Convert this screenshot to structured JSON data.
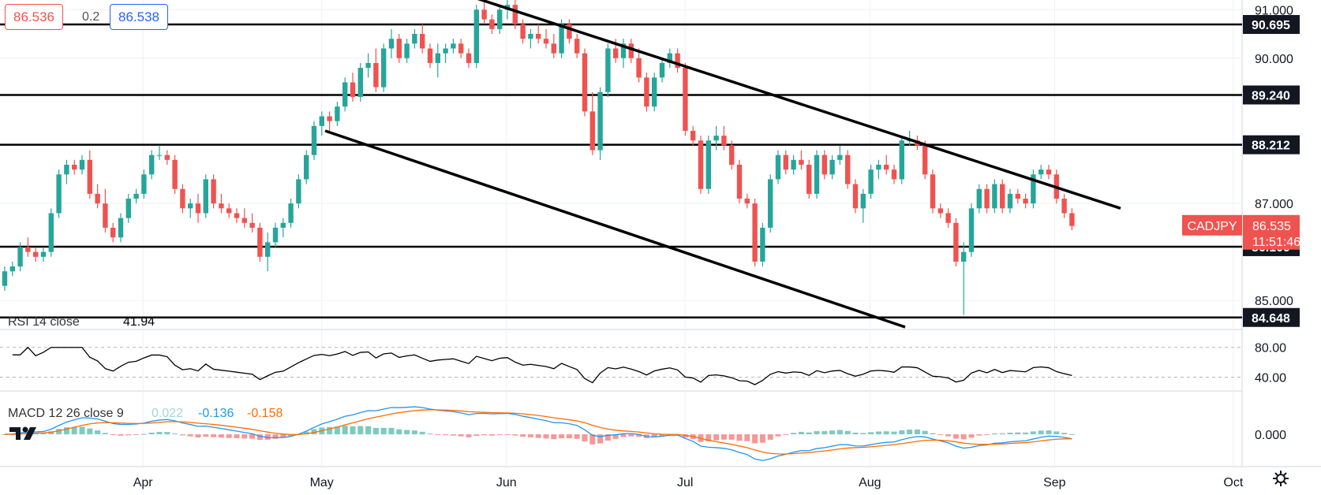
{
  "quote": {
    "sell": "86.536",
    "spread": "0.2",
    "buy": "86.538"
  },
  "panes": {
    "rsi": {
      "label": "RSI 14 close",
      "value": "41.94",
      "ticks": [
        "80.00",
        "40.00"
      ]
    },
    "macd": {
      "label": "MACD 12 26 close 9",
      "histogram": "0.022",
      "macd": "-0.136",
      "signal": "-0.158",
      "ticks": [
        "0.000"
      ]
    }
  },
  "price_axis": {
    "ticks": [
      "91.000",
      "90.000",
      "87.000",
      "85.000"
    ],
    "level_labels": [
      "90.695",
      "89.240",
      "88.212",
      "86.109",
      "84.648"
    ],
    "symbol": "CADJPY",
    "last_price": "86.535",
    "countdown": "11:51:46"
  },
  "time_axis": {
    "labels": [
      "Apr",
      "May",
      "Jun",
      "Jul",
      "Aug",
      "Sep",
      "Oct"
    ]
  },
  "colors": {
    "up": "#26a69a",
    "down": "#ef5350",
    "rsi_line": "#000000",
    "macd_line": "#2196f3",
    "signal_line": "#ff6d00",
    "hist_pos": "#26a69a",
    "hist_neg": "#ef5350"
  },
  "chart_data": {
    "type": "candlestick",
    "symbol": "CADJPY",
    "interval": "1D",
    "x_range": [
      "2022-03-08",
      "2022-09-09"
    ],
    "y_range": [
      84.4,
      91.2
    ],
    "horizontal_levels": [
      90.695,
      89.24,
      88.212,
      86.109,
      84.648
    ],
    "trendlines": [
      {
        "start": [
          "2022-06-01",
          91.25
        ],
        "end": [
          "2022-09-26",
          86.9
        ]
      },
      {
        "start": [
          "2022-05-05",
          88.5
        ],
        "end": [
          "2022-08-18",
          84.45
        ]
      }
    ],
    "candles": [
      [
        85.3,
        85.7,
        85.2,
        85.6
      ],
      [
        85.6,
        85.8,
        85.5,
        85.7
      ],
      [
        85.7,
        86.2,
        85.6,
        86.1
      ],
      [
        86.1,
        86.3,
        85.9,
        86.0
      ],
      [
        86.0,
        86.1,
        85.8,
        85.9
      ],
      [
        85.9,
        86.1,
        85.8,
        86.0
      ],
      [
        86.0,
        86.9,
        85.9,
        86.8
      ],
      [
        86.8,
        87.7,
        86.7,
        87.6
      ],
      [
        87.6,
        87.9,
        87.4,
        87.8
      ],
      [
        87.8,
        87.9,
        87.6,
        87.7
      ],
      [
        87.7,
        88.0,
        87.6,
        87.9
      ],
      [
        87.9,
        88.1,
        87.1,
        87.2
      ],
      [
        87.2,
        87.4,
        86.9,
        87.0
      ],
      [
        87.0,
        87.3,
        86.4,
        86.5
      ],
      [
        86.5,
        86.6,
        86.2,
        86.3
      ],
      [
        86.3,
        86.8,
        86.2,
        86.7
      ],
      [
        86.7,
        87.2,
        86.6,
        87.1
      ],
      [
        87.1,
        87.3,
        87.0,
        87.2
      ],
      [
        87.2,
        87.7,
        87.1,
        87.6
      ],
      [
        87.6,
        88.1,
        87.5,
        88.0
      ],
      [
        88.0,
        88.2,
        87.9,
        88.0
      ],
      [
        88.0,
        88.1,
        87.8,
        87.9
      ],
      [
        87.9,
        88.0,
        87.2,
        87.3
      ],
      [
        87.3,
        87.4,
        86.8,
        86.9
      ],
      [
        86.9,
        87.1,
        86.7,
        87.0
      ],
      [
        87.0,
        87.2,
        86.6,
        86.8
      ],
      [
        86.8,
        87.6,
        86.7,
        87.5
      ],
      [
        87.5,
        87.6,
        86.9,
        87.0
      ],
      [
        87.0,
        87.2,
        86.8,
        86.9
      ],
      [
        86.9,
        87.0,
        86.7,
        86.8
      ],
      [
        86.8,
        86.9,
        86.6,
        86.7
      ],
      [
        86.7,
        86.9,
        86.5,
        86.6
      ],
      [
        86.6,
        86.8,
        86.4,
        86.5
      ],
      [
        86.5,
        86.6,
        85.8,
        85.9
      ],
      [
        85.9,
        86.4,
        85.6,
        86.2
      ],
      [
        86.2,
        86.6,
        86.1,
        86.5
      ],
      [
        86.5,
        86.7,
        86.3,
        86.6
      ],
      [
        86.6,
        87.1,
        86.5,
        87.0
      ],
      [
        87.0,
        87.6,
        86.9,
        87.5
      ],
      [
        87.5,
        88.1,
        87.4,
        88.0
      ],
      [
        88.0,
        88.7,
        87.9,
        88.6
      ],
      [
        88.6,
        88.9,
        88.4,
        88.8
      ],
      [
        88.8,
        88.9,
        88.5,
        88.7
      ],
      [
        88.7,
        89.1,
        88.6,
        89.0
      ],
      [
        89.0,
        89.6,
        88.9,
        89.5
      ],
      [
        89.5,
        89.7,
        89.1,
        89.2
      ],
      [
        89.2,
        89.9,
        89.1,
        89.8
      ],
      [
        89.8,
        90.1,
        89.6,
        89.9
      ],
      [
        89.9,
        90.2,
        89.3,
        89.4
      ],
      [
        89.4,
        90.3,
        89.3,
        90.2
      ],
      [
        90.2,
        90.6,
        90.0,
        90.4
      ],
      [
        90.4,
        90.5,
        89.9,
        90.0
      ],
      [
        90.0,
        90.4,
        89.9,
        90.3
      ],
      [
        90.3,
        90.6,
        90.2,
        90.5
      ],
      [
        90.5,
        90.7,
        90.1,
        90.2
      ],
      [
        90.2,
        90.3,
        89.8,
        89.9
      ],
      [
        89.9,
        90.3,
        89.6,
        90.1
      ],
      [
        90.1,
        90.3,
        89.9,
        90.2
      ],
      [
        90.2,
        90.4,
        90.1,
        90.3
      ],
      [
        90.3,
        90.4,
        90.0,
        90.1
      ],
      [
        90.1,
        90.2,
        89.8,
        89.9
      ],
      [
        89.9,
        91.1,
        89.8,
        91.0
      ],
      [
        91.0,
        91.2,
        90.7,
        90.8
      ],
      [
        90.8,
        90.9,
        90.5,
        90.6
      ],
      [
        90.6,
        91.1,
        90.5,
        91.0
      ],
      [
        91.0,
        91.2,
        90.8,
        91.1
      ],
      [
        91.1,
        91.2,
        90.6,
        90.7
      ],
      [
        90.7,
        90.8,
        90.3,
        90.4
      ],
      [
        90.4,
        90.6,
        90.2,
        90.5
      ],
      [
        90.5,
        90.7,
        90.3,
        90.4
      ],
      [
        90.4,
        90.6,
        90.2,
        90.3
      ],
      [
        90.3,
        90.5,
        90.0,
        90.1
      ],
      [
        90.1,
        90.8,
        90.0,
        90.7
      ],
      [
        90.7,
        90.8,
        90.3,
        90.4
      ],
      [
        90.4,
        90.5,
        90.0,
        90.1
      ],
      [
        90.1,
        90.2,
        88.8,
        88.9
      ],
      [
        88.9,
        89.3,
        88.0,
        88.1
      ],
      [
        88.1,
        89.4,
        87.9,
        89.3
      ],
      [
        89.3,
        90.3,
        89.2,
        90.2
      ],
      [
        90.2,
        90.4,
        89.9,
        90.0
      ],
      [
        90.0,
        90.4,
        89.8,
        90.3
      ],
      [
        90.3,
        90.4,
        89.9,
        90.0
      ],
      [
        90.0,
        90.2,
        89.5,
        89.6
      ],
      [
        89.6,
        89.7,
        88.9,
        89.0
      ],
      [
        89.0,
        89.7,
        88.9,
        89.6
      ],
      [
        89.6,
        90.0,
        89.5,
        89.9
      ],
      [
        89.9,
        90.2,
        89.8,
        90.1
      ],
      [
        90.1,
        90.2,
        89.7,
        89.8
      ],
      [
        89.8,
        89.9,
        88.4,
        88.5
      ],
      [
        88.5,
        88.6,
        88.2,
        88.3
      ],
      [
        88.3,
        88.4,
        87.2,
        87.3
      ],
      [
        87.3,
        88.4,
        87.2,
        88.3
      ],
      [
        88.3,
        88.6,
        88.1,
        88.4
      ],
      [
        88.4,
        88.6,
        88.1,
        88.2
      ],
      [
        88.2,
        88.3,
        87.7,
        87.8
      ],
      [
        87.8,
        87.9,
        87.0,
        87.1
      ],
      [
        87.1,
        87.2,
        86.9,
        87.0
      ],
      [
        87.0,
        87.1,
        85.7,
        85.8
      ],
      [
        85.8,
        86.6,
        85.7,
        86.5
      ],
      [
        86.5,
        87.6,
        86.4,
        87.5
      ],
      [
        87.5,
        88.1,
        87.4,
        88.0
      ],
      [
        88.0,
        88.1,
        87.6,
        87.7
      ],
      [
        87.7,
        88.0,
        87.6,
        87.9
      ],
      [
        87.9,
        88.1,
        87.7,
        87.8
      ],
      [
        87.8,
        87.9,
        87.1,
        87.2
      ],
      [
        87.2,
        88.1,
        87.1,
        88.0
      ],
      [
        88.0,
        88.1,
        87.5,
        87.6
      ],
      [
        87.6,
        88.0,
        87.5,
        87.9
      ],
      [
        87.9,
        88.2,
        87.8,
        88.0
      ],
      [
        88.0,
        88.1,
        87.3,
        87.4
      ],
      [
        87.4,
        87.5,
        86.8,
        86.9
      ],
      [
        86.9,
        87.3,
        86.6,
        87.2
      ],
      [
        87.2,
        87.8,
        87.1,
        87.7
      ],
      [
        87.7,
        87.9,
        87.5,
        87.8
      ],
      [
        87.8,
        88.0,
        87.6,
        87.7
      ],
      [
        87.7,
        87.8,
        87.4,
        87.5
      ],
      [
        87.5,
        88.4,
        87.4,
        88.3
      ],
      [
        88.3,
        88.5,
        88.2,
        88.3
      ],
      [
        88.3,
        88.4,
        88.1,
        88.2
      ],
      [
        88.2,
        88.3,
        87.5,
        87.6
      ],
      [
        87.6,
        87.7,
        86.8,
        86.9
      ],
      [
        86.9,
        87.0,
        86.7,
        86.8
      ],
      [
        86.8,
        86.9,
        86.5,
        86.6
      ],
      [
        86.6,
        86.7,
        85.7,
        85.8
      ],
      [
        85.8,
        86.2,
        84.7,
        86.0
      ],
      [
        86.0,
        87.0,
        85.9,
        86.9
      ],
      [
        86.9,
        87.4,
        86.8,
        87.3
      ],
      [
        87.3,
        87.4,
        86.8,
        86.9
      ],
      [
        86.9,
        87.5,
        86.8,
        87.4
      ],
      [
        87.4,
        87.5,
        86.8,
        86.9
      ],
      [
        86.9,
        87.3,
        86.8,
        87.2
      ],
      [
        87.2,
        87.3,
        87.0,
        87.1
      ],
      [
        87.1,
        87.2,
        86.9,
        87.0
      ],
      [
        87.0,
        87.7,
        86.9,
        87.6
      ],
      [
        87.6,
        87.8,
        87.5,
        87.7
      ],
      [
        87.7,
        87.8,
        87.5,
        87.6
      ],
      [
        87.6,
        87.7,
        87.0,
        87.1
      ],
      [
        87.1,
        87.2,
        86.7,
        86.8
      ],
      [
        86.8,
        86.9,
        86.45,
        86.535
      ]
    ]
  }
}
